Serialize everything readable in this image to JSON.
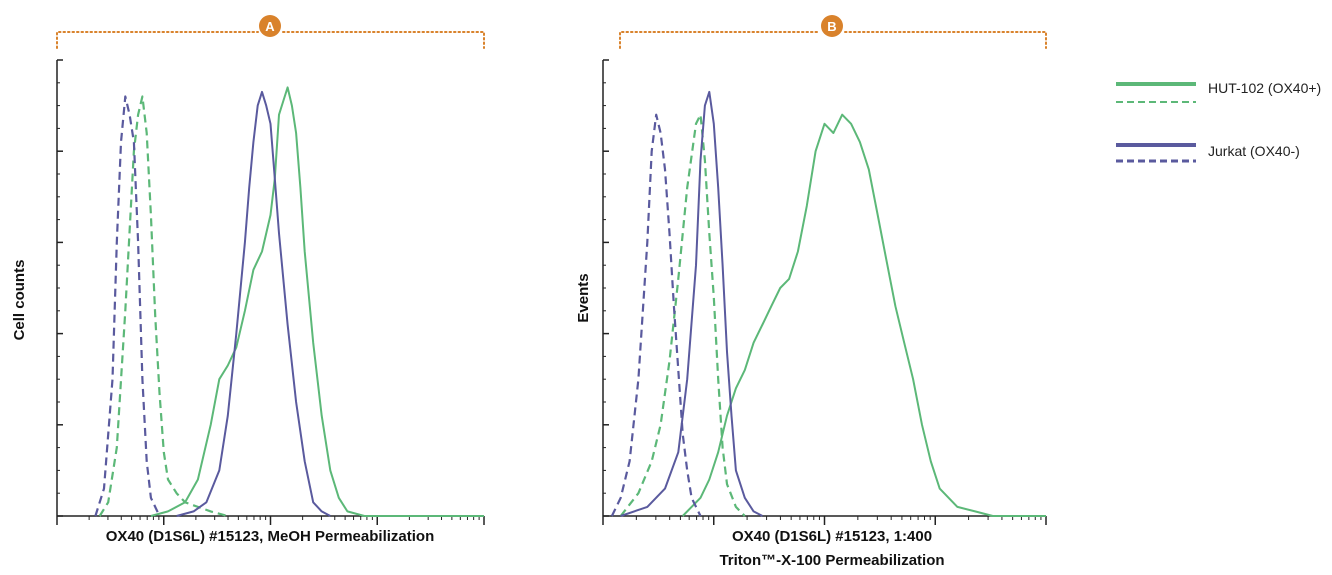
{
  "colors": {
    "green": "#5cb878",
    "purple": "#5a5a9e",
    "accent": "#d9822b",
    "axis": "#222222"
  },
  "legend": {
    "items": [
      {
        "label": "HUT-102 (OX40+)",
        "color": "#5cb878"
      },
      {
        "label": "Jurkat (OX40-)",
        "color": "#5a5a9e"
      }
    ]
  },
  "chart_data": [
    {
      "type": "line",
      "panel_label": "A",
      "xlabel": [
        "OX40 (D1S6L) #15123, MeOH Permeabilization"
      ],
      "ylabel": "Cell counts",
      "xlim": [
        0,
        100
      ],
      "ylim": [
        0,
        100
      ],
      "series": [
        {
          "name": "HUT-102 (OX40+)",
          "color": "#5cb878",
          "style": "solid",
          "x": [
            22,
            26,
            30,
            33,
            36,
            38,
            40,
            42,
            44,
            46,
            48,
            50,
            51,
            52,
            53,
            54,
            55,
            56,
            57,
            58,
            60,
            62,
            64,
            66,
            68,
            72,
            76,
            80,
            100
          ],
          "y": [
            0,
            1,
            3,
            8,
            20,
            30,
            33,
            37,
            45,
            54,
            58,
            66,
            74,
            88,
            91,
            94,
            90,
            84,
            72,
            58,
            38,
            22,
            10,
            4,
            1,
            0,
            0,
            0,
            0
          ]
        },
        {
          "name": "HUT-102 (OX40+)",
          "color": "#5cb878",
          "style": "dashed",
          "x": [
            10,
            12,
            14,
            16,
            18,
            19,
            20,
            21,
            22,
            23,
            24,
            25,
            26,
            28,
            30,
            33,
            36,
            40
          ],
          "y": [
            0,
            3,
            15,
            45,
            80,
            88,
            92,
            84,
            66,
            44,
            27,
            14,
            8,
            5,
            3,
            2,
            1,
            0
          ]
        },
        {
          "name": "Jurkat (OX40-)",
          "color": "#5a5a9e",
          "style": "solid",
          "x": [
            28,
            32,
            35,
            38,
            40,
            42,
            44,
            45,
            46,
            47,
            48,
            49,
            50,
            51,
            52,
            54,
            56,
            58,
            60,
            62,
            64
          ],
          "y": [
            0,
            1,
            3,
            10,
            22,
            40,
            60,
            72,
            82,
            90,
            93,
            90,
            86,
            74,
            62,
            42,
            25,
            12,
            3,
            1,
            0
          ]
        },
        {
          "name": "Jurkat (OX40-)",
          "color": "#5a5a9e",
          "style": "dashed",
          "x": [
            9,
            11,
            13,
            14,
            15,
            16,
            17,
            18,
            19,
            20,
            21,
            22,
            24
          ],
          "y": [
            0,
            6,
            30,
            60,
            82,
            92,
            88,
            82,
            60,
            30,
            12,
            4,
            0
          ]
        }
      ]
    },
    {
      "type": "line",
      "panel_label": "B",
      "xlabel": [
        "OX40 (D1S6L) #15123, 1:400",
        "Triton™-X-100 Permeabilization"
      ],
      "ylabel": "Events",
      "xlim": [
        0,
        100
      ],
      "ylim": [
        0,
        100
      ],
      "series": [
        {
          "name": "HUT-102 (OX40+)",
          "color": "#5cb878",
          "style": "solid",
          "x": [
            18,
            22,
            24,
            26,
            28,
            30,
            32,
            34,
            36,
            38,
            40,
            42,
            44,
            46,
            48,
            50,
            52,
            54,
            56,
            58,
            60,
            62,
            64,
            66,
            68,
            70,
            72,
            74,
            76,
            80,
            84,
            88,
            100
          ],
          "y": [
            0,
            4,
            8,
            14,
            22,
            28,
            32,
            38,
            42,
            46,
            50,
            52,
            58,
            68,
            80,
            86,
            84,
            88,
            86,
            82,
            76,
            66,
            56,
            46,
            38,
            30,
            20,
            12,
            6,
            2,
            1,
            0,
            0
          ]
        },
        {
          "name": "HUT-102 (OX40+)",
          "color": "#5cb878",
          "style": "dashed",
          "x": [
            4,
            8,
            11,
            13,
            15,
            17,
            19,
            21,
            22,
            23,
            24,
            25,
            26,
            27,
            28,
            30,
            32
          ],
          "y": [
            0,
            5,
            12,
            20,
            34,
            52,
            72,
            86,
            88,
            78,
            62,
            48,
            30,
            15,
            7,
            2,
            0
          ]
        },
        {
          "name": "Jurkat (OX40-)",
          "color": "#5a5a9e",
          "style": "solid",
          "x": [
            4,
            10,
            14,
            17,
            19,
            21,
            22,
            23,
            24,
            25,
            26,
            27,
            28,
            29,
            30,
            32,
            34,
            36
          ],
          "y": [
            0,
            2,
            6,
            14,
            30,
            55,
            78,
            90,
            93,
            86,
            72,
            55,
            36,
            22,
            10,
            4,
            1,
            0
          ]
        },
        {
          "name": "Jurkat (OX40-)",
          "color": "#5a5a9e",
          "style": "dashed",
          "x": [
            2,
            4,
            6,
            8,
            10,
            11,
            12,
            13,
            14,
            15,
            16,
            17,
            18,
            19,
            20,
            22
          ],
          "y": [
            0,
            4,
            12,
            30,
            60,
            80,
            88,
            84,
            76,
            62,
            46,
            32,
            18,
            10,
            4,
            0
          ]
        }
      ]
    }
  ]
}
